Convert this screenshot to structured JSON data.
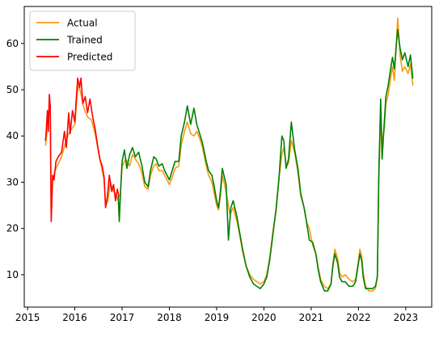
{
  "chart_data": {
    "type": "line",
    "title": "",
    "xlabel": "",
    "ylabel": "",
    "xlim": [
      2014.93,
      2023.55
    ],
    "ylim": [
      3.0,
      68.0
    ],
    "grid": false,
    "legend_position": "top-left",
    "x_ticks": [
      {
        "value": 2015,
        "label": "2015"
      },
      {
        "value": 2016,
        "label": "2016"
      },
      {
        "value": 2017,
        "label": "2017"
      },
      {
        "value": 2018,
        "label": "2018"
      },
      {
        "value": 2019,
        "label": "2019"
      },
      {
        "value": 2020,
        "label": "2020"
      },
      {
        "value": 2021,
        "label": "2021"
      },
      {
        "value": 2022,
        "label": "2022"
      },
      {
        "value": 2023,
        "label": "2023"
      }
    ],
    "y_ticks": [
      {
        "value": 10,
        "label": "10"
      },
      {
        "value": 20,
        "label": "20"
      },
      {
        "value": 30,
        "label": "30"
      },
      {
        "value": 40,
        "label": "40"
      },
      {
        "value": 50,
        "label": "50"
      },
      {
        "value": 60,
        "label": "60"
      }
    ],
    "series": [
      {
        "name": "Actual",
        "color": "#f39c12",
        "points": [
          [
            2015.38,
            38.0
          ],
          [
            2015.42,
            41.5
          ],
          [
            2015.45,
            44.5
          ],
          [
            2015.48,
            46.0
          ],
          [
            2015.5,
            22.0
          ],
          [
            2015.53,
            30.5
          ],
          [
            2015.58,
            32.5
          ],
          [
            2015.65,
            34.0
          ],
          [
            2015.72,
            35.5
          ],
          [
            2015.8,
            38.5
          ],
          [
            2015.87,
            40.5
          ],
          [
            2015.93,
            41.5
          ],
          [
            2016.0,
            42.5
          ],
          [
            2016.05,
            49.0
          ],
          [
            2016.08,
            51.0
          ],
          [
            2016.12,
            49.5
          ],
          [
            2016.18,
            46.5
          ],
          [
            2016.23,
            45.0
          ],
          [
            2016.28,
            44.0
          ],
          [
            2016.35,
            43.5
          ],
          [
            2016.43,
            40.5
          ],
          [
            2016.5,
            36.5
          ],
          [
            2016.57,
            33.0
          ],
          [
            2016.62,
            30.5
          ],
          [
            2016.65,
            25.0
          ],
          [
            2016.7,
            26.0
          ],
          [
            2016.75,
            30.0
          ],
          [
            2016.82,
            28.0
          ],
          [
            2016.88,
            27.0
          ],
          [
            2016.92,
            26.0
          ],
          [
            2016.94,
            22.0
          ],
          [
            2016.97,
            28.5
          ],
          [
            2017.0,
            33.5
          ],
          [
            2017.08,
            35.0
          ],
          [
            2017.16,
            33.5
          ],
          [
            2017.22,
            36.0
          ],
          [
            2017.28,
            35.0
          ],
          [
            2017.35,
            34.0
          ],
          [
            2017.42,
            32.0
          ],
          [
            2017.48,
            29.0
          ],
          [
            2017.55,
            28.5
          ],
          [
            2017.6,
            31.5
          ],
          [
            2017.67,
            33.5
          ],
          [
            2017.72,
            34.0
          ],
          [
            2017.78,
            32.5
          ],
          [
            2017.85,
            32.5
          ],
          [
            2017.9,
            31.5
          ],
          [
            2018.0,
            29.5
          ],
          [
            2018.06,
            31.0
          ],
          [
            2018.12,
            33.0
          ],
          [
            2018.2,
            33.5
          ],
          [
            2018.25,
            38.0
          ],
          [
            2018.32,
            41.0
          ],
          [
            2018.38,
            43.0
          ],
          [
            2018.45,
            40.5
          ],
          [
            2018.52,
            40.0
          ],
          [
            2018.58,
            41.0
          ],
          [
            2018.64,
            39.5
          ],
          [
            2018.7,
            37.5
          ],
          [
            2018.78,
            33.5
          ],
          [
            2018.83,
            31.5
          ],
          [
            2018.9,
            30.0
          ],
          [
            2018.95,
            27.5
          ],
          [
            2019.0,
            25.0
          ],
          [
            2019.04,
            24.0
          ],
          [
            2019.08,
            27.0
          ],
          [
            2019.12,
            31.5
          ],
          [
            2019.2,
            28.0
          ],
          [
            2019.28,
            23.0
          ],
          [
            2019.35,
            24.5
          ],
          [
            2019.43,
            21.5
          ],
          [
            2019.48,
            19.0
          ],
          [
            2019.55,
            15.0
          ],
          [
            2019.62,
            12.0
          ],
          [
            2019.7,
            10.0
          ],
          [
            2019.78,
            9.0
          ],
          [
            2019.85,
            8.5
          ],
          [
            2019.92,
            8.0
          ],
          [
            2020.0,
            8.5
          ],
          [
            2020.06,
            10.0
          ],
          [
            2020.12,
            13.5
          ],
          [
            2020.2,
            20.0
          ],
          [
            2020.26,
            24.0
          ],
          [
            2020.32,
            31.0
          ],
          [
            2020.38,
            36.0
          ],
          [
            2020.42,
            37.5
          ],
          [
            2020.47,
            33.5
          ],
          [
            2020.52,
            34.0
          ],
          [
            2020.58,
            39.0
          ],
          [
            2020.65,
            36.5
          ],
          [
            2020.72,
            32.0
          ],
          [
            2020.78,
            27.0
          ],
          [
            2020.85,
            24.5
          ],
          [
            2020.9,
            21.5
          ],
          [
            2020.96,
            20.0
          ],
          [
            2021.03,
            16.5
          ],
          [
            2021.1,
            14.5
          ],
          [
            2021.15,
            11.5
          ],
          [
            2021.2,
            9.0
          ],
          [
            2021.28,
            7.5
          ],
          [
            2021.35,
            7.0
          ],
          [
            2021.42,
            8.0
          ],
          [
            2021.46,
            12.5
          ],
          [
            2021.5,
            15.5
          ],
          [
            2021.56,
            13.5
          ],
          [
            2021.6,
            10.5
          ],
          [
            2021.65,
            9.5
          ],
          [
            2021.72,
            10.0
          ],
          [
            2021.8,
            9.0
          ],
          [
            2021.88,
            8.5
          ],
          [
            2021.94,
            9.0
          ],
          [
            2022.0,
            13.0
          ],
          [
            2022.03,
            15.5
          ],
          [
            2022.07,
            14.0
          ],
          [
            2022.1,
            10.5
          ],
          [
            2022.15,
            7.5
          ],
          [
            2022.22,
            6.5
          ],
          [
            2022.3,
            6.5
          ],
          [
            2022.36,
            7.0
          ],
          [
            2022.4,
            10.0
          ],
          [
            2022.43,
            30.0
          ],
          [
            2022.47,
            45.0
          ],
          [
            2022.5,
            38.0
          ],
          [
            2022.55,
            42.0
          ],
          [
            2022.58,
            47.0
          ],
          [
            2022.63,
            49.0
          ],
          [
            2022.68,
            52.5
          ],
          [
            2022.72,
            55.0
          ],
          [
            2022.76,
            52.0
          ],
          [
            2022.8,
            60.0
          ],
          [
            2022.83,
            65.5
          ],
          [
            2022.88,
            57.5
          ],
          [
            2022.93,
            54.0
          ],
          [
            2022.98,
            55.0
          ],
          [
            2023.05,
            53.5
          ],
          [
            2023.1,
            55.5
          ],
          [
            2023.15,
            51.0
          ]
        ]
      },
      {
        "name": "Trained",
        "color": "#008000",
        "points": [
          [
            2016.92,
            27.0
          ],
          [
            2016.94,
            21.5
          ],
          [
            2016.97,
            28.5
          ],
          [
            2017.0,
            34.5
          ],
          [
            2017.05,
            37.0
          ],
          [
            2017.1,
            33.0
          ],
          [
            2017.16,
            36.0
          ],
          [
            2017.22,
            37.5
          ],
          [
            2017.28,
            35.5
          ],
          [
            2017.35,
            36.5
          ],
          [
            2017.42,
            33.5
          ],
          [
            2017.48,
            30.0
          ],
          [
            2017.55,
            29.0
          ],
          [
            2017.6,
            32.5
          ],
          [
            2017.67,
            35.5
          ],
          [
            2017.72,
            35.0
          ],
          [
            2017.78,
            33.5
          ],
          [
            2017.85,
            34.0
          ],
          [
            2017.9,
            32.5
          ],
          [
            2018.0,
            30.5
          ],
          [
            2018.06,
            32.5
          ],
          [
            2018.12,
            34.5
          ],
          [
            2018.2,
            34.5
          ],
          [
            2018.25,
            40.0
          ],
          [
            2018.32,
            43.0
          ],
          [
            2018.38,
            46.5
          ],
          [
            2018.45,
            42.5
          ],
          [
            2018.52,
            46.0
          ],
          [
            2018.58,
            42.5
          ],
          [
            2018.64,
            40.5
          ],
          [
            2018.7,
            38.5
          ],
          [
            2018.78,
            34.5
          ],
          [
            2018.83,
            32.5
          ],
          [
            2018.9,
            31.5
          ],
          [
            2018.95,
            29.0
          ],
          [
            2019.0,
            26.0
          ],
          [
            2019.04,
            24.5
          ],
          [
            2019.08,
            28.0
          ],
          [
            2019.12,
            33.0
          ],
          [
            2019.2,
            29.5
          ],
          [
            2019.25,
            17.5
          ],
          [
            2019.3,
            24.5
          ],
          [
            2019.35,
            26.0
          ],
          [
            2019.43,
            22.5
          ],
          [
            2019.48,
            19.5
          ],
          [
            2019.55,
            15.5
          ],
          [
            2019.62,
            12.0
          ],
          [
            2019.7,
            9.5
          ],
          [
            2019.78,
            8.0
          ],
          [
            2019.85,
            7.5
          ],
          [
            2019.92,
            7.0
          ],
          [
            2020.0,
            8.0
          ],
          [
            2020.06,
            9.5
          ],
          [
            2020.12,
            13.0
          ],
          [
            2020.2,
            19.5
          ],
          [
            2020.26,
            24.5
          ],
          [
            2020.32,
            31.0
          ],
          [
            2020.38,
            40.0
          ],
          [
            2020.42,
            39.0
          ],
          [
            2020.47,
            33.0
          ],
          [
            2020.52,
            35.0
          ],
          [
            2020.58,
            43.0
          ],
          [
            2020.65,
            37.0
          ],
          [
            2020.72,
            33.0
          ],
          [
            2020.78,
            27.5
          ],
          [
            2020.85,
            24.5
          ],
          [
            2020.9,
            21.5
          ],
          [
            2020.96,
            17.5
          ],
          [
            2021.03,
            17.0
          ],
          [
            2021.1,
            14.5
          ],
          [
            2021.15,
            11.0
          ],
          [
            2021.2,
            8.5
          ],
          [
            2021.28,
            6.5
          ],
          [
            2021.35,
            6.5
          ],
          [
            2021.42,
            8.0
          ],
          [
            2021.46,
            12.0
          ],
          [
            2021.5,
            14.5
          ],
          [
            2021.56,
            12.5
          ],
          [
            2021.6,
            9.5
          ],
          [
            2021.65,
            8.5
          ],
          [
            2021.72,
            8.5
          ],
          [
            2021.8,
            7.5
          ],
          [
            2021.88,
            7.5
          ],
          [
            2021.94,
            8.5
          ],
          [
            2022.0,
            12.5
          ],
          [
            2022.03,
            14.5
          ],
          [
            2022.07,
            13.0
          ],
          [
            2022.1,
            9.5
          ],
          [
            2022.15,
            7.0
          ],
          [
            2022.22,
            7.0
          ],
          [
            2022.3,
            7.0
          ],
          [
            2022.36,
            7.5
          ],
          [
            2022.4,
            9.5
          ],
          [
            2022.43,
            31.5
          ],
          [
            2022.47,
            48.0
          ],
          [
            2022.5,
            35.0
          ],
          [
            2022.55,
            43.5
          ],
          [
            2022.58,
            48.5
          ],
          [
            2022.63,
            51.0
          ],
          [
            2022.68,
            54.5
          ],
          [
            2022.72,
            57.0
          ],
          [
            2022.76,
            54.5
          ],
          [
            2022.8,
            59.5
          ],
          [
            2022.83,
            63.0
          ],
          [
            2022.88,
            59.0
          ],
          [
            2022.93,
            56.5
          ],
          [
            2022.98,
            58.0
          ],
          [
            2023.05,
            55.0
          ],
          [
            2023.1,
            57.5
          ],
          [
            2023.15,
            52.5
          ]
        ]
      },
      {
        "name": "Predicted",
        "color": "#ff0000",
        "points": [
          [
            2015.38,
            39.0
          ],
          [
            2015.4,
            42.0
          ],
          [
            2015.42,
            45.5
          ],
          [
            2015.44,
            41.0
          ],
          [
            2015.46,
            49.0
          ],
          [
            2015.48,
            46.5
          ],
          [
            2015.5,
            21.5
          ],
          [
            2015.53,
            31.5
          ],
          [
            2015.56,
            30.5
          ],
          [
            2015.6,
            34.5
          ],
          [
            2015.65,
            35.5
          ],
          [
            2015.72,
            36.5
          ],
          [
            2015.78,
            41.0
          ],
          [
            2015.82,
            37.5
          ],
          [
            2015.87,
            45.0
          ],
          [
            2015.9,
            40.5
          ],
          [
            2015.95,
            45.5
          ],
          [
            2016.0,
            43.0
          ],
          [
            2016.03,
            48.0
          ],
          [
            2016.06,
            52.5
          ],
          [
            2016.1,
            50.5
          ],
          [
            2016.13,
            52.5
          ],
          [
            2016.17,
            47.0
          ],
          [
            2016.22,
            48.5
          ],
          [
            2016.27,
            45.0
          ],
          [
            2016.32,
            48.0
          ],
          [
            2016.38,
            44.0
          ],
          [
            2016.43,
            41.5
          ],
          [
            2016.48,
            38.0
          ],
          [
            2016.53,
            35.0
          ],
          [
            2016.58,
            33.5
          ],
          [
            2016.62,
            31.0
          ],
          [
            2016.65,
            24.5
          ],
          [
            2016.69,
            27.0
          ],
          [
            2016.73,
            31.5
          ],
          [
            2016.78,
            28.0
          ],
          [
            2016.82,
            29.5
          ],
          [
            2016.86,
            26.0
          ],
          [
            2016.9,
            28.5
          ],
          [
            2016.93,
            27.0
          ]
        ]
      }
    ]
  }
}
